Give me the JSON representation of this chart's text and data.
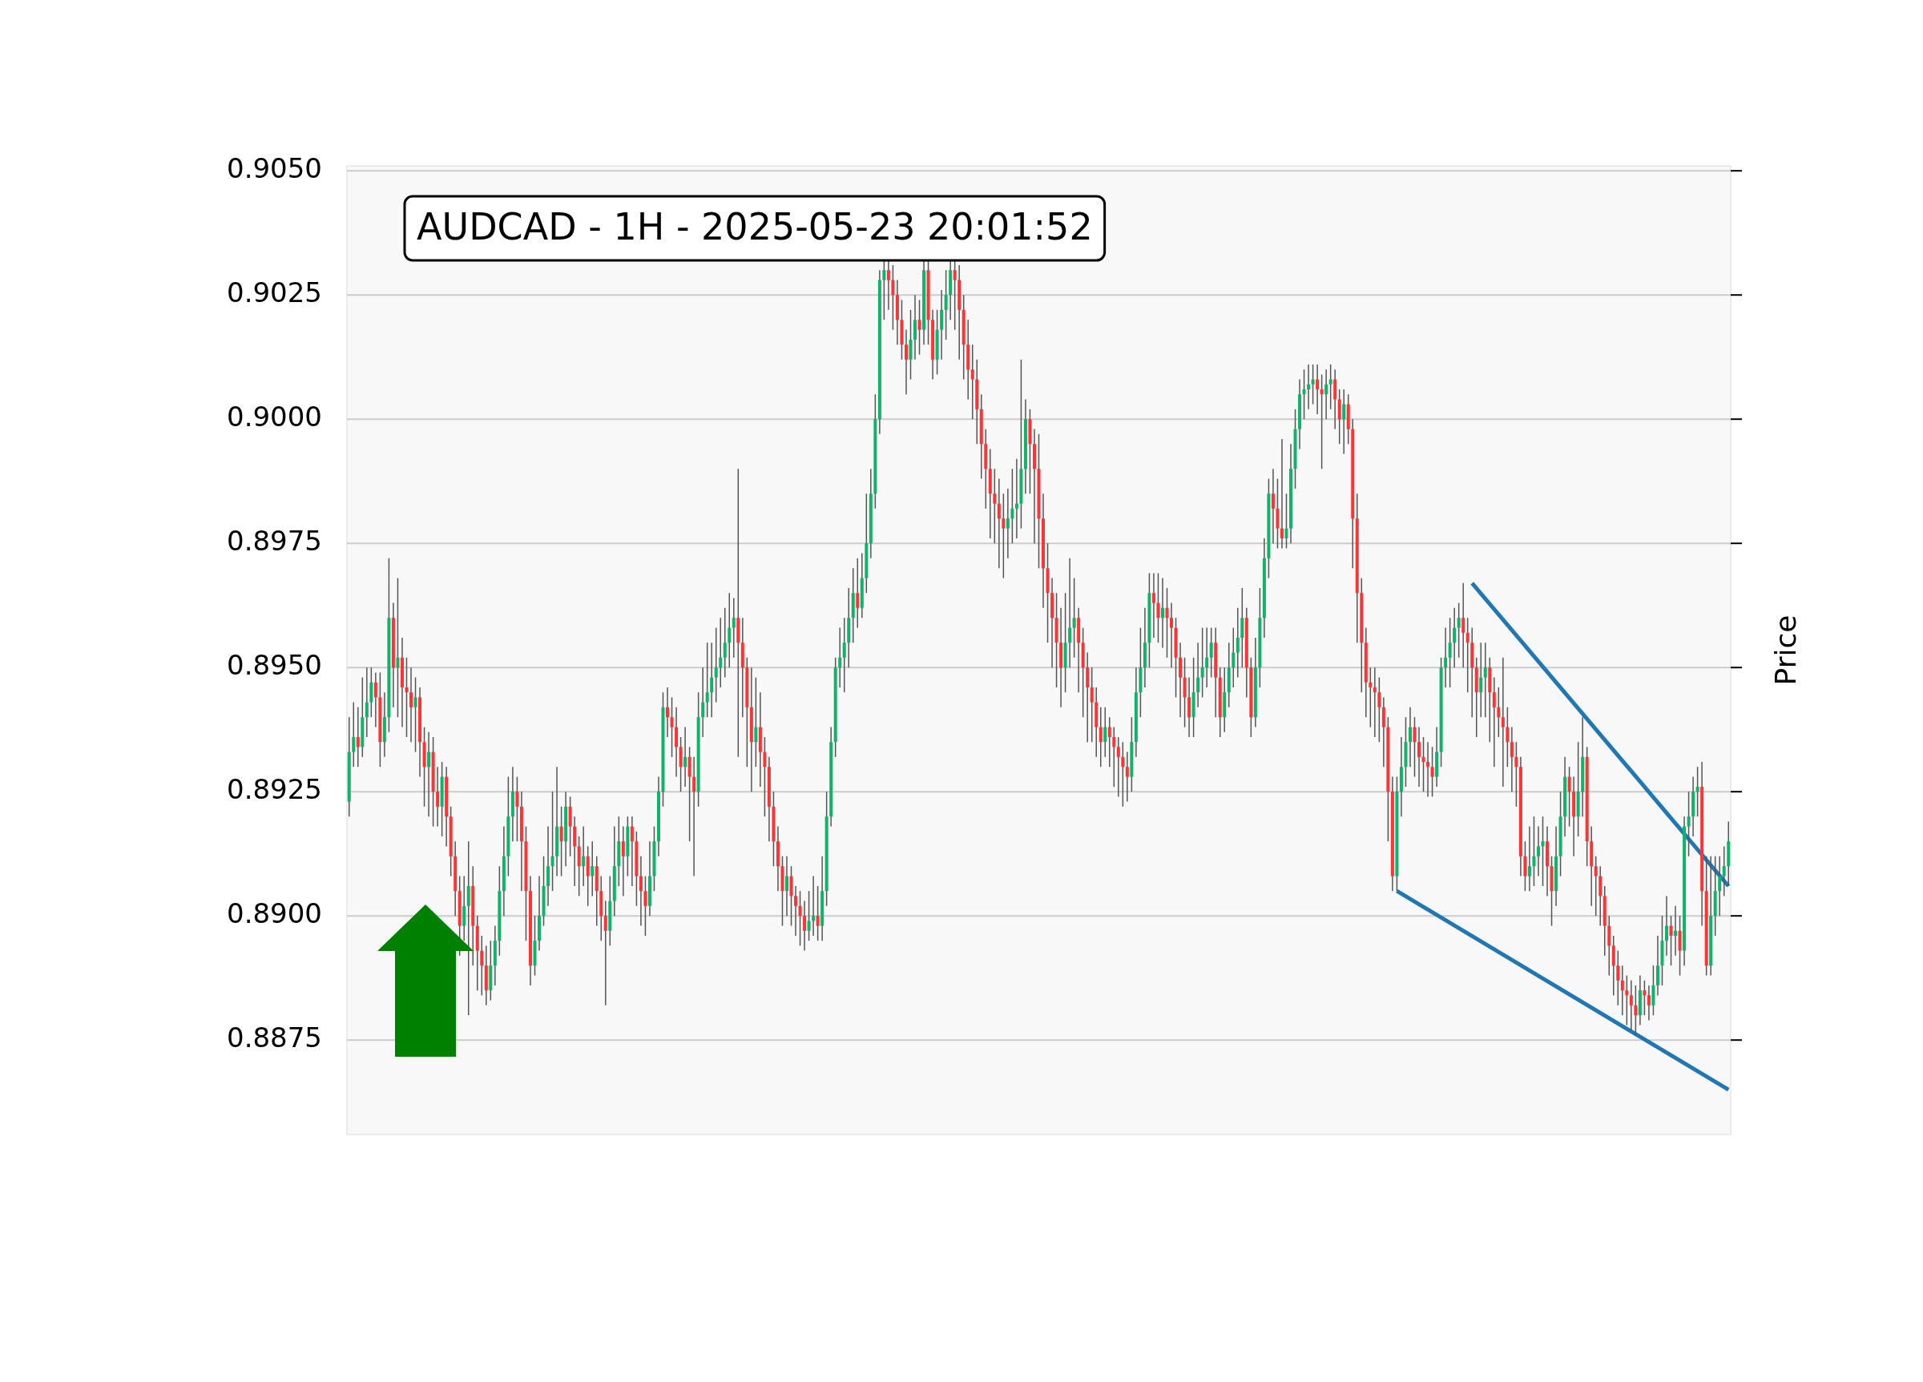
{
  "chart_data": {
    "type": "candlestick",
    "title": "AUDCAD - 1H - 2025-05-23 20:01:52",
    "ylabel": "Price",
    "categories": [
      null,
      null,
      null,
      null,
      null,
      null,
      null,
      null,
      null,
      null,
      null,
      null,
      null,
      null,
      null,
      null,
      null,
      null,
      null,
      null,
      null,
      null,
      null,
      null,
      null,
      null,
      null,
      null,
      null,
      null,
      null,
      null,
      null,
      null,
      null,
      null,
      null,
      null,
      null,
      null,
      null,
      null,
      null,
      null,
      null,
      null,
      null,
      null,
      null,
      null,
      null,
      null,
      null,
      null,
      null,
      null,
      null,
      null,
      null,
      null,
      null,
      null,
      null,
      null,
      null,
      null,
      null,
      null,
      null,
      null,
      null,
      null,
      null,
      null,
      null,
      null,
      null,
      null,
      null,
      null,
      null,
      null,
      null,
      null,
      null,
      null,
      null,
      null,
      null,
      null,
      null,
      null,
      null,
      null,
      null,
      null,
      null,
      null,
      null,
      null,
      null,
      null,
      null,
      null,
      null,
      null,
      null,
      null,
      null,
      null,
      null,
      null,
      null,
      null,
      null,
      null,
      null,
      null,
      null,
      null,
      null,
      null,
      null,
      null,
      null,
      null,
      null,
      null,
      null,
      null,
      null,
      null,
      null,
      null,
      null,
      null,
      null,
      null,
      null,
      null,
      null,
      null,
      null,
      null,
      null,
      null,
      null,
      null,
      null,
      null,
      null,
      null,
      null,
      null,
      null,
      null,
      null,
      null,
      null,
      null,
      null,
      null,
      null,
      null,
      null,
      null,
      null,
      null,
      null,
      null,
      null,
      null,
      null,
      null,
      null,
      null,
      null,
      null,
      null,
      null,
      null,
      null,
      null,
      null,
      null,
      null,
      null,
      null,
      null,
      null,
      null,
      null,
      null,
      null,
      null,
      null,
      null,
      null,
      null,
      null,
      null,
      null,
      null,
      null,
      null,
      null,
      null,
      null,
      null,
      null,
      null,
      null,
      null,
      null,
      null,
      null,
      null,
      null,
      null,
      null,
      null,
      null,
      null,
      null,
      null,
      null,
      null,
      null,
      null,
      null,
      null,
      null,
      null,
      null,
      null,
      null,
      null,
      null,
      null,
      null,
      null,
      null,
      null,
      null,
      null,
      null,
      null,
      null,
      null,
      null,
      null,
      null,
      null,
      null,
      null,
      null,
      null,
      null,
      null,
      null,
      null,
      null,
      null,
      null,
      null,
      null,
      null,
      null,
      null,
      null,
      null,
      null,
      null,
      null,
      null,
      null,
      null,
      null,
      null,
      null,
      null,
      null,
      null,
      null,
      null,
      null,
      null,
      null,
      null,
      null,
      null,
      null,
      null,
      null,
      null,
      null,
      null,
      null,
      null,
      null,
      null,
      null,
      null,
      null,
      null,
      null,
      null,
      null,
      null,
      null,
      null,
      null,
      null
    ],
    "ohlc": [
      [
        0.8923,
        0.894,
        0.892,
        0.8933
      ],
      [
        0.8933,
        0.8943,
        0.893,
        0.8936
      ],
      [
        0.8936,
        0.8942,
        0.893,
        0.8934
      ],
      [
        0.8934,
        0.8948,
        0.8932,
        0.894
      ],
      [
        0.894,
        0.895,
        0.8936,
        0.8943
      ],
      [
        0.8943,
        0.895,
        0.894,
        0.8947
      ],
      [
        0.8947,
        0.8949,
        0.8938,
        0.8944
      ],
      [
        0.8944,
        0.8949,
        0.893,
        0.8935
      ],
      [
        0.8935,
        0.8945,
        0.8932,
        0.894
      ],
      [
        0.894,
        0.8972,
        0.8937,
        0.896
      ],
      [
        0.896,
        0.8963,
        0.8942,
        0.895
      ],
      [
        0.895,
        0.8968,
        0.894,
        0.8952
      ],
      [
        0.8952,
        0.8956,
        0.8938,
        0.8946
      ],
      [
        0.8946,
        0.8952,
        0.8936,
        0.8945
      ],
      [
        0.8945,
        0.895,
        0.8935,
        0.8942
      ],
      [
        0.8942,
        0.8948,
        0.8933,
        0.8944
      ],
      [
        0.8944,
        0.8946,
        0.8928,
        0.8935
      ],
      [
        0.8935,
        0.8938,
        0.8922,
        0.893
      ],
      [
        0.893,
        0.8937,
        0.892,
        0.8933
      ],
      [
        0.8933,
        0.8936,
        0.8918,
        0.8925
      ],
      [
        0.8925,
        0.893,
        0.8918,
        0.8922
      ],
      [
        0.8922,
        0.8931,
        0.8916,
        0.8928
      ],
      [
        0.8928,
        0.893,
        0.8914,
        0.892
      ],
      [
        0.892,
        0.8922,
        0.8908,
        0.8912
      ],
      [
        0.8912,
        0.8915,
        0.89,
        0.8905
      ],
      [
        0.8905,
        0.8908,
        0.8892,
        0.8898
      ],
      [
        0.8898,
        0.8908,
        0.8895,
        0.8902
      ],
      [
        0.8902,
        0.8915,
        0.888,
        0.8906
      ],
      [
        0.8906,
        0.891,
        0.889,
        0.8898
      ],
      [
        0.8898,
        0.89,
        0.8885,
        0.8893
      ],
      [
        0.8893,
        0.8896,
        0.8884,
        0.889
      ],
      [
        0.889,
        0.8894,
        0.8882,
        0.8885
      ],
      [
        0.8885,
        0.8895,
        0.8883,
        0.889
      ],
      [
        0.889,
        0.8898,
        0.8886,
        0.8895
      ],
      [
        0.8895,
        0.891,
        0.8892,
        0.8905
      ],
      [
        0.8905,
        0.8918,
        0.89,
        0.8912
      ],
      [
        0.8912,
        0.8928,
        0.8908,
        0.892
      ],
      [
        0.892,
        0.893,
        0.8915,
        0.8925
      ],
      [
        0.8925,
        0.8928,
        0.8915,
        0.8922
      ],
      [
        0.8922,
        0.8925,
        0.8905,
        0.8915
      ],
      [
        0.8915,
        0.8918,
        0.8895,
        0.8905
      ],
      [
        0.8905,
        0.8908,
        0.8886,
        0.889
      ],
      [
        0.889,
        0.89,
        0.8888,
        0.8895
      ],
      [
        0.8895,
        0.8908,
        0.8893,
        0.89
      ],
      [
        0.89,
        0.8912,
        0.8898,
        0.8906
      ],
      [
        0.8906,
        0.8918,
        0.8902,
        0.891
      ],
      [
        0.891,
        0.8925,
        0.8905,
        0.8912
      ],
      [
        0.8912,
        0.893,
        0.8908,
        0.8918
      ],
      [
        0.8918,
        0.8922,
        0.8908,
        0.8915
      ],
      [
        0.8915,
        0.8925,
        0.891,
        0.8922
      ],
      [
        0.8922,
        0.8924,
        0.8912,
        0.8918
      ],
      [
        0.8918,
        0.892,
        0.8906,
        0.8914
      ],
      [
        0.8914,
        0.8916,
        0.8904,
        0.891
      ],
      [
        0.891,
        0.8918,
        0.8906,
        0.8912
      ],
      [
        0.8912,
        0.8914,
        0.8902,
        0.8908
      ],
      [
        0.8908,
        0.8915,
        0.8904,
        0.891
      ],
      [
        0.891,
        0.8912,
        0.8898,
        0.8905
      ],
      [
        0.8905,
        0.8908,
        0.8895,
        0.89
      ],
      [
        0.89,
        0.8903,
        0.8882,
        0.8897
      ],
      [
        0.8897,
        0.8908,
        0.8894,
        0.8903
      ],
      [
        0.8903,
        0.8918,
        0.89,
        0.891
      ],
      [
        0.891,
        0.892,
        0.8906,
        0.8915
      ],
      [
        0.8915,
        0.8918,
        0.8904,
        0.8912
      ],
      [
        0.8912,
        0.892,
        0.8908,
        0.8918
      ],
      [
        0.8918,
        0.892,
        0.8906,
        0.8915
      ],
      [
        0.8915,
        0.8917,
        0.8902,
        0.8908
      ],
      [
        0.8908,
        0.8912,
        0.8898,
        0.8905
      ],
      [
        0.8905,
        0.8908,
        0.8896,
        0.8902
      ],
      [
        0.8902,
        0.8915,
        0.89,
        0.8908
      ],
      [
        0.8908,
        0.8918,
        0.8905,
        0.8915
      ],
      [
        0.8915,
        0.8928,
        0.8912,
        0.8925
      ],
      [
        0.8925,
        0.8945,
        0.8922,
        0.8942
      ],
      [
        0.8942,
        0.8946,
        0.8936,
        0.894
      ],
      [
        0.894,
        0.8944,
        0.8932,
        0.8938
      ],
      [
        0.8938,
        0.8942,
        0.8928,
        0.8934
      ],
      [
        0.8934,
        0.8936,
        0.8925,
        0.893
      ],
      [
        0.893,
        0.8938,
        0.8926,
        0.8932
      ],
      [
        0.8932,
        0.8934,
        0.8915,
        0.8928
      ],
      [
        0.8928,
        0.8932,
        0.8908,
        0.8925
      ],
      [
        0.8925,
        0.8945,
        0.8922,
        0.894
      ],
      [
        0.894,
        0.895,
        0.8936,
        0.8943
      ],
      [
        0.8943,
        0.8955,
        0.894,
        0.8945
      ],
      [
        0.8945,
        0.8955,
        0.894,
        0.8948
      ],
      [
        0.8948,
        0.8958,
        0.8943,
        0.895
      ],
      [
        0.895,
        0.896,
        0.8946,
        0.8952
      ],
      [
        0.8952,
        0.8962,
        0.8948,
        0.8955
      ],
      [
        0.8955,
        0.8965,
        0.895,
        0.8958
      ],
      [
        0.8958,
        0.8964,
        0.8952,
        0.896
      ],
      [
        0.896,
        0.899,
        0.8932,
        0.8955
      ],
      [
        0.8955,
        0.896,
        0.894,
        0.895
      ],
      [
        0.895,
        0.8952,
        0.893,
        0.8942
      ],
      [
        0.8942,
        0.895,
        0.8925,
        0.8935
      ],
      [
        0.8935,
        0.8948,
        0.893,
        0.8938
      ],
      [
        0.8938,
        0.8945,
        0.8926,
        0.8933
      ],
      [
        0.8933,
        0.8936,
        0.892,
        0.893
      ],
      [
        0.893,
        0.8932,
        0.8915,
        0.8922
      ],
      [
        0.8922,
        0.8925,
        0.891,
        0.8915
      ],
      [
        0.8915,
        0.8918,
        0.8905,
        0.891
      ],
      [
        0.891,
        0.8912,
        0.8898,
        0.8905
      ],
      [
        0.8905,
        0.8912,
        0.89,
        0.8908
      ],
      [
        0.8908,
        0.891,
        0.8898,
        0.8904
      ],
      [
        0.8904,
        0.8906,
        0.8896,
        0.8902
      ],
      [
        0.8902,
        0.8905,
        0.8894,
        0.89
      ],
      [
        0.89,
        0.8903,
        0.8893,
        0.8897
      ],
      [
        0.8897,
        0.8905,
        0.8895,
        0.8899
      ],
      [
        0.8899,
        0.8908,
        0.8896,
        0.89
      ],
      [
        0.89,
        0.8906,
        0.8895,
        0.8898
      ],
      [
        0.8898,
        0.8912,
        0.8895,
        0.8905
      ],
      [
        0.8905,
        0.8925,
        0.8902,
        0.892
      ],
      [
        0.892,
        0.8938,
        0.8918,
        0.8935
      ],
      [
        0.8935,
        0.8952,
        0.8932,
        0.895
      ],
      [
        0.895,
        0.8958,
        0.8946,
        0.8952
      ],
      [
        0.8952,
        0.896,
        0.8945,
        0.8955
      ],
      [
        0.8955,
        0.8966,
        0.895,
        0.896
      ],
      [
        0.896,
        0.897,
        0.8955,
        0.8965
      ],
      [
        0.8965,
        0.8972,
        0.8958,
        0.8962
      ],
      [
        0.8962,
        0.8973,
        0.896,
        0.8968
      ],
      [
        0.8968,
        0.8985,
        0.8965,
        0.8975
      ],
      [
        0.8975,
        0.899,
        0.8972,
        0.8985
      ],
      [
        0.8985,
        0.9005,
        0.8982,
        0.9
      ],
      [
        0.9,
        0.903,
        0.8997,
        0.9028
      ],
      [
        0.9028,
        0.9032,
        0.902,
        0.903
      ],
      [
        0.903,
        0.9032,
        0.9022,
        0.9028
      ],
      [
        0.9028,
        0.9031,
        0.9018,
        0.9025
      ],
      [
        0.9025,
        0.9028,
        0.9015,
        0.902
      ],
      [
        0.902,
        0.9024,
        0.9012,
        0.9015
      ],
      [
        0.9015,
        0.9018,
        0.9005,
        0.9012
      ],
      [
        0.9012,
        0.9022,
        0.9008,
        0.9016
      ],
      [
        0.9016,
        0.9025,
        0.9012,
        0.902
      ],
      [
        0.902,
        0.9024,
        0.9013,
        0.9018
      ],
      [
        0.9018,
        0.9032,
        0.9015,
        0.903
      ],
      [
        0.903,
        0.9032,
        0.9015,
        0.902
      ],
      [
        0.902,
        0.9022,
        0.9008,
        0.9012
      ],
      [
        0.9012,
        0.9022,
        0.9009,
        0.9018
      ],
      [
        0.9018,
        0.9026,
        0.9012,
        0.9022
      ],
      [
        0.9022,
        0.903,
        0.9016,
        0.9025
      ],
      [
        0.9025,
        0.9032,
        0.902,
        0.903
      ],
      [
        0.903,
        0.9032,
        0.9018,
        0.9028
      ],
      [
        0.9028,
        0.9031,
        0.9012,
        0.9022
      ],
      [
        0.9022,
        0.9025,
        0.9008,
        0.9015
      ],
      [
        0.9015,
        0.902,
        0.9004,
        0.901
      ],
      [
        0.901,
        0.9015,
        0.9,
        0.9008
      ],
      [
        0.9008,
        0.9012,
        0.8995,
        0.9002
      ],
      [
        0.9002,
        0.9005,
        0.8988,
        0.8995
      ],
      [
        0.8995,
        0.8998,
        0.8982,
        0.899
      ],
      [
        0.899,
        0.8994,
        0.8976,
        0.8985
      ],
      [
        0.8985,
        0.899,
        0.8975,
        0.8983
      ],
      [
        0.8983,
        0.8988,
        0.897,
        0.898
      ],
      [
        0.898,
        0.8985,
        0.8968,
        0.8978
      ],
      [
        0.8978,
        0.8986,
        0.8972,
        0.898
      ],
      [
        0.898,
        0.899,
        0.8975,
        0.8982
      ],
      [
        0.8982,
        0.8992,
        0.8976,
        0.8983
      ],
      [
        0.8983,
        0.9012,
        0.8978,
        0.899
      ],
      [
        0.899,
        0.9004,
        0.8985,
        0.9
      ],
      [
        0.9,
        0.9002,
        0.8985,
        0.8995
      ],
      [
        0.8995,
        0.8998,
        0.8975,
        0.899
      ],
      [
        0.899,
        0.8997,
        0.897,
        0.898
      ],
      [
        0.898,
        0.8985,
        0.8962,
        0.897
      ],
      [
        0.897,
        0.8975,
        0.8955,
        0.8965
      ],
      [
        0.8965,
        0.8968,
        0.895,
        0.896
      ],
      [
        0.896,
        0.8965,
        0.8946,
        0.8955
      ],
      [
        0.8955,
        0.8962,
        0.8942,
        0.895
      ],
      [
        0.895,
        0.8965,
        0.8945,
        0.8955
      ],
      [
        0.8955,
        0.8972,
        0.895,
        0.8958
      ],
      [
        0.8958,
        0.8968,
        0.8952,
        0.896
      ],
      [
        0.896,
        0.8962,
        0.8945,
        0.8955
      ],
      [
        0.8955,
        0.8958,
        0.894,
        0.895
      ],
      [
        0.895,
        0.8953,
        0.8935,
        0.8946
      ],
      [
        0.8946,
        0.895,
        0.8935,
        0.8943
      ],
      [
        0.8943,
        0.8946,
        0.8932,
        0.8938
      ],
      [
        0.8938,
        0.8942,
        0.893,
        0.8935
      ],
      [
        0.8935,
        0.8942,
        0.8932,
        0.8938
      ],
      [
        0.8938,
        0.894,
        0.893,
        0.8936
      ],
      [
        0.8936,
        0.8938,
        0.8926,
        0.8934
      ],
      [
        0.8934,
        0.8936,
        0.8924,
        0.8932
      ],
      [
        0.8932,
        0.8935,
        0.8922,
        0.893
      ],
      [
        0.893,
        0.8933,
        0.8923,
        0.8928
      ],
      [
        0.8928,
        0.894,
        0.8925,
        0.8935
      ],
      [
        0.8935,
        0.895,
        0.8932,
        0.8945
      ],
      [
        0.8945,
        0.8958,
        0.894,
        0.895
      ],
      [
        0.895,
        0.8962,
        0.8946,
        0.8955
      ],
      [
        0.8955,
        0.8969,
        0.895,
        0.8965
      ],
      [
        0.8965,
        0.8969,
        0.8956,
        0.8963
      ],
      [
        0.8963,
        0.8969,
        0.8955,
        0.896
      ],
      [
        0.896,
        0.8968,
        0.8954,
        0.8962
      ],
      [
        0.8962,
        0.8966,
        0.8952,
        0.896
      ],
      [
        0.896,
        0.8963,
        0.895,
        0.8958
      ],
      [
        0.8958,
        0.896,
        0.8944,
        0.8952
      ],
      [
        0.8952,
        0.8955,
        0.894,
        0.8948
      ],
      [
        0.8948,
        0.8952,
        0.8938,
        0.8944
      ],
      [
        0.8944,
        0.8948,
        0.8936,
        0.894
      ],
      [
        0.894,
        0.8952,
        0.8936,
        0.8945
      ],
      [
        0.8945,
        0.8955,
        0.8942,
        0.8948
      ],
      [
        0.8948,
        0.8958,
        0.8944,
        0.895
      ],
      [
        0.895,
        0.8958,
        0.8946,
        0.8952
      ],
      [
        0.8952,
        0.8958,
        0.8948,
        0.8955
      ],
      [
        0.8955,
        0.8958,
        0.894,
        0.8948
      ],
      [
        0.8948,
        0.895,
        0.8936,
        0.894
      ],
      [
        0.894,
        0.895,
        0.8937,
        0.8945
      ],
      [
        0.8945,
        0.8955,
        0.8942,
        0.895
      ],
      [
        0.895,
        0.8958,
        0.8946,
        0.8953
      ],
      [
        0.8953,
        0.8962,
        0.8948,
        0.8956
      ],
      [
        0.8956,
        0.8966,
        0.895,
        0.896
      ],
      [
        0.896,
        0.8962,
        0.8944,
        0.895
      ],
      [
        0.895,
        0.8952,
        0.8936,
        0.894
      ],
      [
        0.894,
        0.8956,
        0.8938,
        0.895
      ],
      [
        0.895,
        0.8966,
        0.8946,
        0.896
      ],
      [
        0.896,
        0.8976,
        0.8956,
        0.8972
      ],
      [
        0.8972,
        0.8988,
        0.8968,
        0.8985
      ],
      [
        0.8985,
        0.899,
        0.8975,
        0.8982
      ],
      [
        0.8982,
        0.8988,
        0.8974,
        0.8978
      ],
      [
        0.8978,
        0.8996,
        0.8974,
        0.8976
      ],
      [
        0.8976,
        0.8985,
        0.8974,
        0.8978
      ],
      [
        0.8978,
        0.8995,
        0.8975,
        0.899
      ],
      [
        0.899,
        0.9002,
        0.8986,
        0.8998
      ],
      [
        0.8998,
        0.9008,
        0.8994,
        0.9005
      ],
      [
        0.9005,
        0.901,
        0.9,
        0.9006
      ],
      [
        0.9006,
        0.9011,
        0.9002,
        0.9007
      ],
      [
        0.9007,
        0.9011,
        0.9003,
        0.9008
      ],
      [
        0.9008,
        0.9011,
        0.9001,
        0.9006
      ],
      [
        0.9006,
        0.9009,
        0.899,
        0.9005
      ],
      [
        0.9005,
        0.901,
        0.9,
        0.9007
      ],
      [
        0.9007,
        0.9011,
        0.9002,
        0.9008
      ],
      [
        0.9008,
        0.901,
        0.8998,
        0.9004
      ],
      [
        0.9004,
        0.9006,
        0.8995,
        0.9
      ],
      [
        0.9,
        0.9006,
        0.8993,
        0.9003
      ],
      [
        0.9003,
        0.9005,
        0.8995,
        0.8998
      ],
      [
        0.8998,
        0.9,
        0.897,
        0.898
      ],
      [
        0.898,
        0.8985,
        0.8955,
        0.8965
      ],
      [
        0.8965,
        0.8968,
        0.8945,
        0.8955
      ],
      [
        0.8955,
        0.8958,
        0.894,
        0.8947
      ],
      [
        0.8947,
        0.895,
        0.8938,
        0.8946
      ],
      [
        0.8946,
        0.895,
        0.8936,
        0.8945
      ],
      [
        0.8945,
        0.8948,
        0.8935,
        0.8942
      ],
      [
        0.8942,
        0.8944,
        0.893,
        0.8938
      ],
      [
        0.8938,
        0.894,
        0.8915,
        0.8925
      ],
      [
        0.8925,
        0.8928,
        0.8905,
        0.8908
      ],
      [
        0.8908,
        0.8928,
        0.8905,
        0.8925
      ],
      [
        0.8925,
        0.8936,
        0.892,
        0.893
      ],
      [
        0.893,
        0.894,
        0.8926,
        0.8935
      ],
      [
        0.8935,
        0.8942,
        0.893,
        0.8938
      ],
      [
        0.8938,
        0.894,
        0.8928,
        0.8935
      ],
      [
        0.8935,
        0.8938,
        0.8926,
        0.8932
      ],
      [
        0.8932,
        0.8936,
        0.8925,
        0.8931
      ],
      [
        0.8931,
        0.8935,
        0.8924,
        0.893
      ],
      [
        0.893,
        0.8934,
        0.8924,
        0.8928
      ],
      [
        0.8928,
        0.8938,
        0.8926,
        0.8933
      ],
      [
        0.8933,
        0.8952,
        0.893,
        0.895
      ],
      [
        0.895,
        0.8958,
        0.8946,
        0.8952
      ],
      [
        0.8952,
        0.896,
        0.8946,
        0.8955
      ],
      [
        0.8955,
        0.8962,
        0.895,
        0.8958
      ],
      [
        0.8958,
        0.8963,
        0.8952,
        0.896
      ],
      [
        0.896,
        0.8967,
        0.895,
        0.8957
      ],
      [
        0.8957,
        0.896,
        0.8945,
        0.8955
      ],
      [
        0.8955,
        0.8958,
        0.894,
        0.895
      ],
      [
        0.895,
        0.8952,
        0.8936,
        0.8945
      ],
      [
        0.8945,
        0.8955,
        0.894,
        0.8948
      ],
      [
        0.8948,
        0.8955,
        0.894,
        0.895
      ],
      [
        0.895,
        0.8952,
        0.8935,
        0.8945
      ],
      [
        0.8945,
        0.8948,
        0.893,
        0.8942
      ],
      [
        0.8942,
        0.8946,
        0.8936,
        0.894
      ],
      [
        0.894,
        0.8952,
        0.8926,
        0.8938
      ],
      [
        0.8938,
        0.8942,
        0.893,
        0.8935
      ],
      [
        0.8935,
        0.8938,
        0.8925,
        0.8932
      ],
      [
        0.8932,
        0.8935,
        0.8922,
        0.893
      ],
      [
        0.893,
        0.8932,
        0.8908,
        0.8912
      ],
      [
        0.8912,
        0.8915,
        0.8905,
        0.8908
      ],
      [
        0.8908,
        0.8918,
        0.8905,
        0.891
      ],
      [
        0.891,
        0.892,
        0.8906,
        0.8912
      ],
      [
        0.8912,
        0.8918,
        0.8908,
        0.8914
      ],
      [
        0.8914,
        0.892,
        0.8906,
        0.8915
      ],
      [
        0.8915,
        0.8918,
        0.8904,
        0.891
      ],
      [
        0.891,
        0.8912,
        0.8898,
        0.8905
      ],
      [
        0.8905,
        0.8918,
        0.8902,
        0.8912
      ],
      [
        0.8912,
        0.8925,
        0.8908,
        0.892
      ],
      [
        0.892,
        0.8932,
        0.8916,
        0.8928
      ],
      [
        0.8928,
        0.893,
        0.8918,
        0.8925
      ],
      [
        0.8925,
        0.8928,
        0.8912,
        0.892
      ],
      [
        0.892,
        0.8935,
        0.8916,
        0.8925
      ],
      [
        0.8925,
        0.894,
        0.892,
        0.8932
      ],
      [
        0.8932,
        0.8934,
        0.891,
        0.8915
      ],
      [
        0.8915,
        0.8918,
        0.8902,
        0.891
      ],
      [
        0.891,
        0.8912,
        0.89,
        0.8908
      ],
      [
        0.8908,
        0.891,
        0.8898,
        0.8904
      ],
      [
        0.8904,
        0.8906,
        0.8892,
        0.8898
      ],
      [
        0.8898,
        0.89,
        0.8888,
        0.8894
      ],
      [
        0.8894,
        0.8896,
        0.8884,
        0.889
      ],
      [
        0.889,
        0.8893,
        0.8882,
        0.8887
      ],
      [
        0.8887,
        0.889,
        0.888,
        0.8885
      ],
      [
        0.8885,
        0.8888,
        0.8878,
        0.8884
      ],
      [
        0.8884,
        0.8887,
        0.8877,
        0.8882
      ],
      [
        0.8882,
        0.8886,
        0.8876,
        0.888
      ],
      [
        0.888,
        0.8888,
        0.8878,
        0.8885
      ],
      [
        0.8885,
        0.8887,
        0.888,
        0.8884
      ],
      [
        0.8884,
        0.8886,
        0.8879,
        0.8882
      ],
      [
        0.8882,
        0.889,
        0.888,
        0.8886
      ],
      [
        0.8886,
        0.8896,
        0.8884,
        0.889
      ],
      [
        0.889,
        0.89,
        0.8886,
        0.8895
      ],
      [
        0.8895,
        0.8904,
        0.8892,
        0.8898
      ],
      [
        0.8898,
        0.89,
        0.889,
        0.8896
      ],
      [
        0.8896,
        0.8902,
        0.8892,
        0.8897
      ],
      [
        0.8897,
        0.89,
        0.8888,
        0.8893
      ],
      [
        0.8893,
        0.892,
        0.889,
        0.8918
      ],
      [
        0.8918,
        0.8925,
        0.8912,
        0.892
      ],
      [
        0.892,
        0.8928,
        0.8916,
        0.8925
      ],
      [
        0.8925,
        0.893,
        0.892,
        0.8926
      ],
      [
        0.8926,
        0.8931,
        0.8898,
        0.8905
      ],
      [
        0.8905,
        0.8912,
        0.8888,
        0.889
      ],
      [
        0.889,
        0.8912,
        0.8888,
        0.89
      ],
      [
        0.89,
        0.8912,
        0.8896,
        0.8905
      ],
      [
        0.8905,
        0.8912,
        0.89,
        0.8908
      ],
      [
        0.8908,
        0.8914,
        0.8904,
        0.891
      ],
      [
        0.891,
        0.8919,
        0.8906,
        0.8915
      ]
    ],
    "series": [
      {
        "type": "line",
        "color": "#1f77b4",
        "values": [
          null,
          null,
          null,
          null,
          null,
          null,
          null,
          null,
          null,
          null,
          null,
          null,
          null,
          null,
          null,
          null,
          null,
          null,
          null,
          null,
          null,
          null,
          null,
          null,
          null,
          null,
          null,
          null,
          null,
          null,
          null,
          null,
          null,
          null,
          null,
          null,
          null,
          null,
          null,
          null,
          null,
          null,
          null,
          null,
          null,
          null,
          null,
          null,
          null,
          null,
          null,
          null,
          null,
          null,
          null,
          null,
          null,
          null,
          null,
          null,
          null,
          null,
          null,
          null,
          null,
          null,
          null,
          null,
          null,
          null,
          null,
          null,
          null,
          null,
          null,
          null,
          null,
          null,
          null,
          null,
          null,
          null,
          null,
          null,
          null,
          null,
          null,
          null,
          null,
          null,
          null,
          null,
          null,
          null,
          null,
          null,
          null,
          null,
          null,
          null,
          null,
          null,
          null,
          null,
          null,
          null,
          null,
          null,
          null,
          null,
          null,
          null,
          null,
          null,
          null,
          null,
          null,
          null,
          null,
          null,
          null,
          null,
          null,
          null,
          null,
          null,
          null,
          null,
          null,
          null,
          null,
          null,
          null,
          null,
          null,
          null,
          null,
          null,
          null,
          null,
          null,
          null,
          null,
          null,
          null,
          null,
          null,
          null,
          null,
          null,
          null,
          null,
          null,
          null,
          null,
          null,
          null,
          null,
          null,
          null,
          null,
          null,
          null,
          null,
          null,
          null,
          null,
          null,
          null,
          null,
          null,
          null,
          null,
          null,
          null,
          null,
          null,
          null,
          null,
          null,
          null,
          null,
          null,
          null,
          null,
          null,
          null,
          null,
          null,
          null,
          null,
          null,
          null,
          null,
          null,
          null,
          null,
          null,
          null,
          null,
          null,
          null,
          null,
          null,
          null,
          null,
          null,
          null,
          null,
          null,
          null,
          null,
          null,
          null,
          null,
          null,
          null,
          null,
          null,
          null,
          null,
          null,
          null,
          null,
          null,
          null,
          null,
          null,
          null,
          null,
          null,
          null,
          null,
          null,
          null,
          null,
          null,
          null,
          null,
          null,
          null,
          null,
          null,
          null,
          null,
          null,
          null,
          null,
          null,
          null,
          null,
          null,
          null,
          null,
          0.8967,
          null,
          null,
          null,
          null,
          null,
          null,
          null,
          null,
          null,
          null,
          null,
          null,
          null,
          null,
          null,
          null,
          null,
          null,
          null,
          null,
          null,
          null,
          null,
          null,
          null,
          null,
          null,
          null,
          null,
          null,
          null,
          null,
          null,
          null,
          null,
          null,
          null,
          null,
          null,
          null,
          null,
          null,
          null,
          null,
          null,
          null,
          null,
          null,
          null,
          null,
          null,
          null,
          null,
          null,
          null,
          null,
          null,
          0.8906
        ]
      },
      {
        "type": "line",
        "color": "#1f77b4",
        "values": [
          null,
          null,
          null,
          null,
          null,
          null,
          null,
          null,
          null,
          null,
          null,
          null,
          null,
          null,
          null,
          null,
          null,
          null,
          null,
          null,
          null,
          null,
          null,
          null,
          null,
          null,
          null,
          null,
          null,
          null,
          null,
          null,
          null,
          null,
          null,
          null,
          null,
          null,
          null,
          null,
          null,
          null,
          null,
          null,
          null,
          null,
          null,
          null,
          null,
          null,
          null,
          null,
          null,
          null,
          null,
          null,
          null,
          null,
          null,
          null,
          null,
          null,
          null,
          null,
          null,
          null,
          null,
          null,
          null,
          null,
          null,
          null,
          null,
          null,
          null,
          null,
          null,
          null,
          null,
          null,
          null,
          null,
          null,
          null,
          null,
          null,
          null,
          null,
          null,
          null,
          null,
          null,
          null,
          null,
          null,
          null,
          null,
          null,
          null,
          null,
          null,
          null,
          null,
          null,
          null,
          null,
          null,
          null,
          null,
          null,
          null,
          null,
          null,
          null,
          null,
          null,
          null,
          null,
          null,
          null,
          null,
          null,
          null,
          null,
          null,
          null,
          null,
          null,
          null,
          null,
          null,
          null,
          null,
          null,
          null,
          null,
          null,
          null,
          null,
          null,
          null,
          null,
          null,
          null,
          null,
          null,
          null,
          null,
          null,
          null,
          null,
          null,
          null,
          null,
          null,
          null,
          null,
          null,
          null,
          null,
          null,
          null,
          null,
          null,
          null,
          null,
          null,
          null,
          null,
          null,
          null,
          null,
          null,
          null,
          null,
          null,
          null,
          null,
          null,
          null,
          null,
          null,
          null,
          null,
          null,
          null,
          null,
          null,
          null,
          null,
          null,
          null,
          null,
          null,
          null,
          null,
          null,
          null,
          null,
          null,
          null,
          null,
          null,
          null,
          null,
          null,
          null,
          null,
          null,
          null,
          null,
          null,
          null,
          null,
          null,
          null,
          null,
          null,
          null,
          null,
          null,
          null,
          null,
          null,
          null,
          null,
          null,
          null,
          null,
          null,
          null,
          null,
          null,
          null,
          null,
          null,
          null,
          0.8905,
          null,
          null,
          null,
          null,
          null,
          null,
          null,
          null,
          null,
          null,
          null,
          null,
          null,
          null,
          null,
          null,
          null,
          null,
          null,
          null,
          null,
          null,
          null,
          null,
          null,
          null,
          null,
          null,
          null,
          null,
          null,
          null,
          null,
          null,
          null,
          null,
          null,
          null,
          null,
          null,
          null,
          null,
          null,
          null,
          null,
          null,
          null,
          null,
          null,
          null,
          null,
          null,
          null,
          null,
          null,
          null,
          null,
          null,
          null,
          null,
          null,
          null,
          null,
          null,
          null,
          null,
          null,
          null,
          null,
          null,
          null,
          null,
          null,
          null,
          0.8865
        ]
      }
    ],
    "ylim": [
      0.8856,
      0.9051
    ],
    "yticks": [
      0.8875,
      {
        "value": 0.89,
        "label": "0.8900"
      },
      0.8925,
      {
        "value": 0.895,
        "label": "0.8950"
      },
      0.8975,
      {
        "value": 0.9,
        "label": "0.9000"
      },
      0.9025,
      {
        "value": 0.905,
        "label": "0.9050"
      }
    ],
    "grid": "y",
    "tick_labels": "y"
  }
}
